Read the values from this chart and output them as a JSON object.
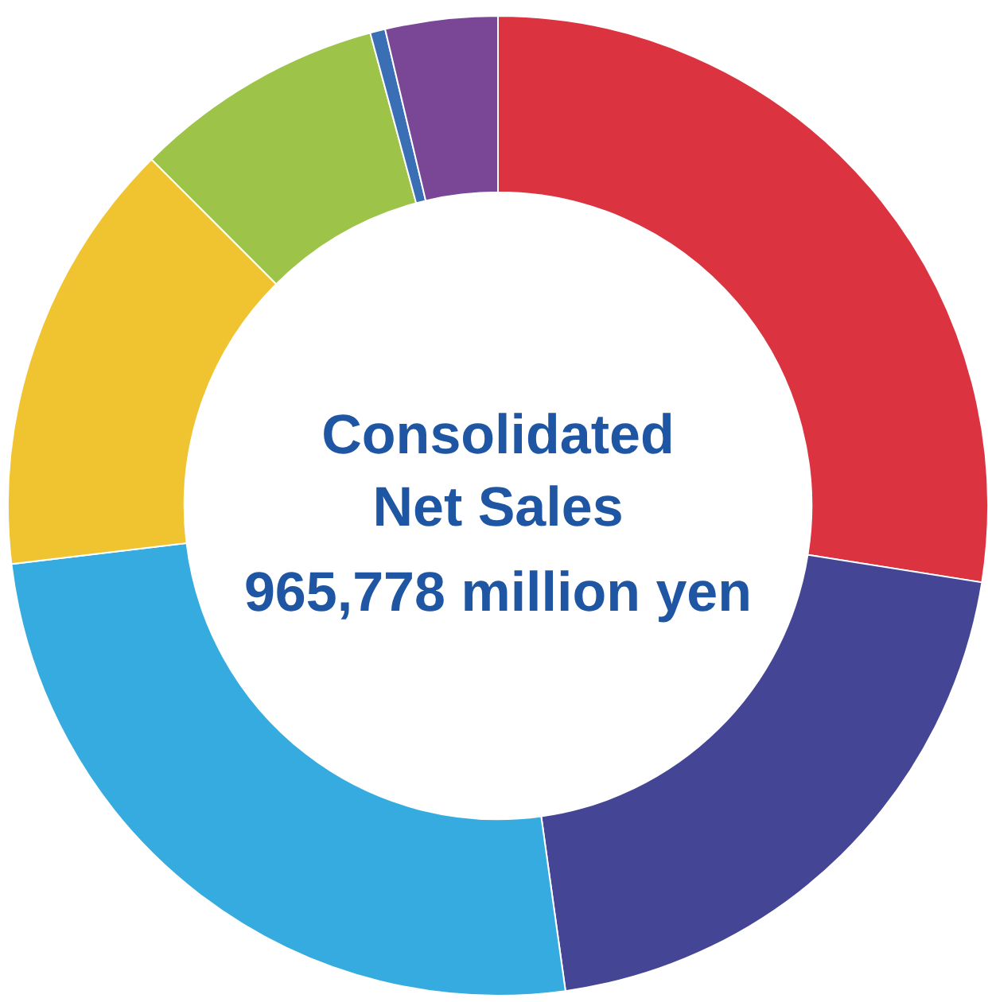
{
  "chart_data": {
    "type": "donut",
    "title": "Consolidated Net Sales",
    "subtitle": "965,778 million yen",
    "categories": [
      null,
      null,
      null,
      null,
      null,
      null,
      null
    ],
    "values": [
      27.5,
      20.3,
      25.3,
      14.4,
      8.3,
      0.5,
      3.7
    ],
    "colors": [
      "#dc3340",
      "#454596",
      "#35abdf",
      "#f0c330",
      "#9dc449",
      "#3a6fb5",
      "#7a4797"
    ]
  }
}
